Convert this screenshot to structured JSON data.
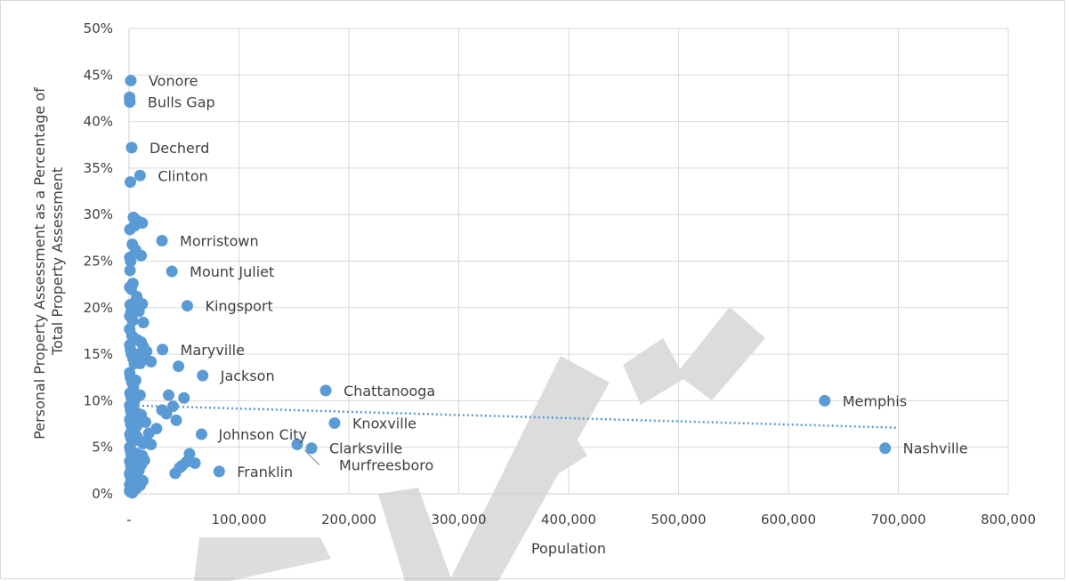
{
  "chart_data": {
    "type": "scatter",
    "title": "",
    "xlabel": "Population",
    "ylabel_lines": [
      "Personal Property Assessment as a Percentage of",
      "Total Property Assessment"
    ],
    "xlim": [
      0,
      800000
    ],
    "ylim": [
      0,
      0.5
    ],
    "x_ticks": [
      {
        "value": 0,
        "label": "-"
      },
      {
        "value": 100000,
        "label": "100,000"
      },
      {
        "value": 200000,
        "label": "200,000"
      },
      {
        "value": 300000,
        "label": "300,000"
      },
      {
        "value": 400000,
        "label": "400,000"
      },
      {
        "value": 500000,
        "label": "500,000"
      },
      {
        "value": 600000,
        "label": "600,000"
      },
      {
        "value": 700000,
        "label": "700,000"
      },
      {
        "value": 800000,
        "label": "800,000"
      }
    ],
    "y_ticks": [
      {
        "value": 0,
        "label": "0%"
      },
      {
        "value": 0.05,
        "label": "5%"
      },
      {
        "value": 0.1,
        "label": "10%"
      },
      {
        "value": 0.15,
        "label": "15%"
      },
      {
        "value": 0.2,
        "label": "20%"
      },
      {
        "value": 0.25,
        "label": "25%"
      },
      {
        "value": 0.3,
        "label": "30%"
      },
      {
        "value": 0.35,
        "label": "35%"
      },
      {
        "value": 0.4,
        "label": "40%"
      },
      {
        "value": 0.45,
        "label": "45%"
      },
      {
        "value": 0.5,
        "label": "50%"
      }
    ],
    "grid": true,
    "trendline": {
      "style": "dotted",
      "x": [
        0,
        700000
      ],
      "y": [
        0.095,
        0.071
      ]
    },
    "labeled_points": [
      {
        "name": "Vonore",
        "x": 1600,
        "y": 0.444
      },
      {
        "name": "Bulls Gap",
        "x": 700,
        "y": 0.421
      },
      {
        "name": "Decherd",
        "x": 2400,
        "y": 0.372
      },
      {
        "name": "Clinton",
        "x": 10000,
        "y": 0.342
      },
      {
        "name": "Morristown",
        "x": 30000,
        "y": 0.272
      },
      {
        "name": "Mount Juliet",
        "x": 39000,
        "y": 0.239
      },
      {
        "name": "Kingsport",
        "x": 53000,
        "y": 0.202
      },
      {
        "name": "Maryville",
        "x": 30500,
        "y": 0.155
      },
      {
        "name": "Jackson",
        "x": 67000,
        "y": 0.127
      },
      {
        "name": "Chattanooga",
        "x": 179000,
        "y": 0.111
      },
      {
        "name": "Memphis",
        "x": 633000,
        "y": 0.1
      },
      {
        "name": "Knoxville",
        "x": 187000,
        "y": 0.076
      },
      {
        "name": "Johnson City",
        "x": 66000,
        "y": 0.064
      },
      {
        "name": "Clarksville",
        "x": 166000,
        "y": 0.049
      },
      {
        "name": "Nashville",
        "x": 688000,
        "y": 0.049
      },
      {
        "name": "Franklin",
        "x": 82000,
        "y": 0.024
      },
      {
        "name": "Murfreesboro",
        "x": 153000,
        "y": 0.053
      }
    ],
    "other_points": [
      [
        500,
        0.426
      ],
      [
        1200,
        0.335
      ],
      [
        4000,
        0.297
      ],
      [
        8000,
        0.293
      ],
      [
        12000,
        0.291
      ],
      [
        5000,
        0.288
      ],
      [
        800,
        0.284
      ],
      [
        3000,
        0.268
      ],
      [
        6000,
        0.262
      ],
      [
        11000,
        0.256
      ],
      [
        700,
        0.254
      ],
      [
        1500,
        0.25
      ],
      [
        900,
        0.24
      ],
      [
        3500,
        0.226
      ],
      [
        600,
        0.222
      ],
      [
        2000,
        0.22
      ],
      [
        7000,
        0.212
      ],
      [
        12000,
        0.204
      ],
      [
        1000,
        0.203
      ],
      [
        4500,
        0.205
      ],
      [
        9000,
        0.196
      ],
      [
        13000,
        0.184
      ],
      [
        700,
        0.191
      ],
      [
        1800,
        0.195
      ],
      [
        3200,
        0.186
      ],
      [
        600,
        0.177
      ],
      [
        2600,
        0.17
      ],
      [
        5000,
        0.167
      ],
      [
        8000,
        0.165
      ],
      [
        11000,
        0.163
      ],
      [
        13000,
        0.158
      ],
      [
        16000,
        0.153
      ],
      [
        700,
        0.16
      ],
      [
        1300,
        0.155
      ],
      [
        2200,
        0.15
      ],
      [
        3800,
        0.145
      ],
      [
        5000,
        0.14
      ],
      [
        7000,
        0.146
      ],
      [
        9000,
        0.15
      ],
      [
        10000,
        0.14
      ],
      [
        14000,
        0.147
      ],
      [
        20000,
        0.142
      ],
      [
        45000,
        0.137
      ],
      [
        600,
        0.13
      ],
      [
        1200,
        0.125
      ],
      [
        2500,
        0.12
      ],
      [
        4000,
        0.115
      ],
      [
        6000,
        0.122
      ],
      [
        900,
        0.108
      ],
      [
        1900,
        0.104
      ],
      [
        3000,
        0.11
      ],
      [
        5000,
        0.1
      ],
      [
        7500,
        0.105
      ],
      [
        10000,
        0.106
      ],
      [
        36000,
        0.106
      ],
      [
        50000,
        0.103
      ],
      [
        600,
        0.095
      ],
      [
        1400,
        0.09
      ],
      [
        2300,
        0.087
      ],
      [
        3500,
        0.092
      ],
      [
        6000,
        0.088
      ],
      [
        8000,
        0.083
      ],
      [
        11000,
        0.085
      ],
      [
        30000,
        0.09
      ],
      [
        34000,
        0.086
      ],
      [
        40000,
        0.094
      ],
      [
        43000,
        0.079
      ],
      [
        700,
        0.08
      ],
      [
        1500,
        0.075
      ],
      [
        2600,
        0.07
      ],
      [
        4200,
        0.074
      ],
      [
        6500,
        0.072
      ],
      [
        9000,
        0.076
      ],
      [
        12000,
        0.079
      ],
      [
        15000,
        0.077
      ],
      [
        25000,
        0.07
      ],
      [
        18000,
        0.065
      ],
      [
        800,
        0.064
      ],
      [
        1700,
        0.06
      ],
      [
        2800,
        0.056
      ],
      [
        4500,
        0.058
      ],
      [
        7000,
        0.062
      ],
      [
        10000,
        0.057
      ],
      [
        13000,
        0.054
      ],
      [
        16000,
        0.055
      ],
      [
        20000,
        0.053
      ],
      [
        600,
        0.05
      ],
      [
        1300,
        0.046
      ],
      [
        2100,
        0.042
      ],
      [
        3300,
        0.045
      ],
      [
        5000,
        0.04
      ],
      [
        7500,
        0.043
      ],
      [
        9500,
        0.038
      ],
      [
        12000,
        0.041
      ],
      [
        14000,
        0.036
      ],
      [
        700,
        0.035
      ],
      [
        1600,
        0.03
      ],
      [
        2900,
        0.027
      ],
      [
        4400,
        0.033
      ],
      [
        6800,
        0.029
      ],
      [
        9000,
        0.025
      ],
      [
        11000,
        0.031
      ],
      [
        55000,
        0.043
      ],
      [
        60000,
        0.033
      ],
      [
        52000,
        0.034
      ],
      [
        48000,
        0.03
      ],
      [
        46000,
        0.028
      ],
      [
        42000,
        0.022
      ],
      [
        500,
        0.022
      ],
      [
        1100,
        0.019
      ],
      [
        2000,
        0.015
      ],
      [
        3400,
        0.018
      ],
      [
        5200,
        0.013
      ],
      [
        7200,
        0.016
      ],
      [
        9500,
        0.012
      ],
      [
        12500,
        0.014
      ],
      [
        600,
        0.01
      ],
      [
        1400,
        0.007
      ],
      [
        2700,
        0.005
      ],
      [
        4300,
        0.008
      ],
      [
        6800,
        0.006
      ],
      [
        10000,
        0.009
      ],
      [
        500,
        0.003
      ],
      [
        1200,
        0.002
      ],
      [
        3000,
        0.001
      ]
    ],
    "marker_color": "#5b9bd5",
    "trendline_color": "#5b9bd5",
    "watermark": "DRAFT"
  }
}
